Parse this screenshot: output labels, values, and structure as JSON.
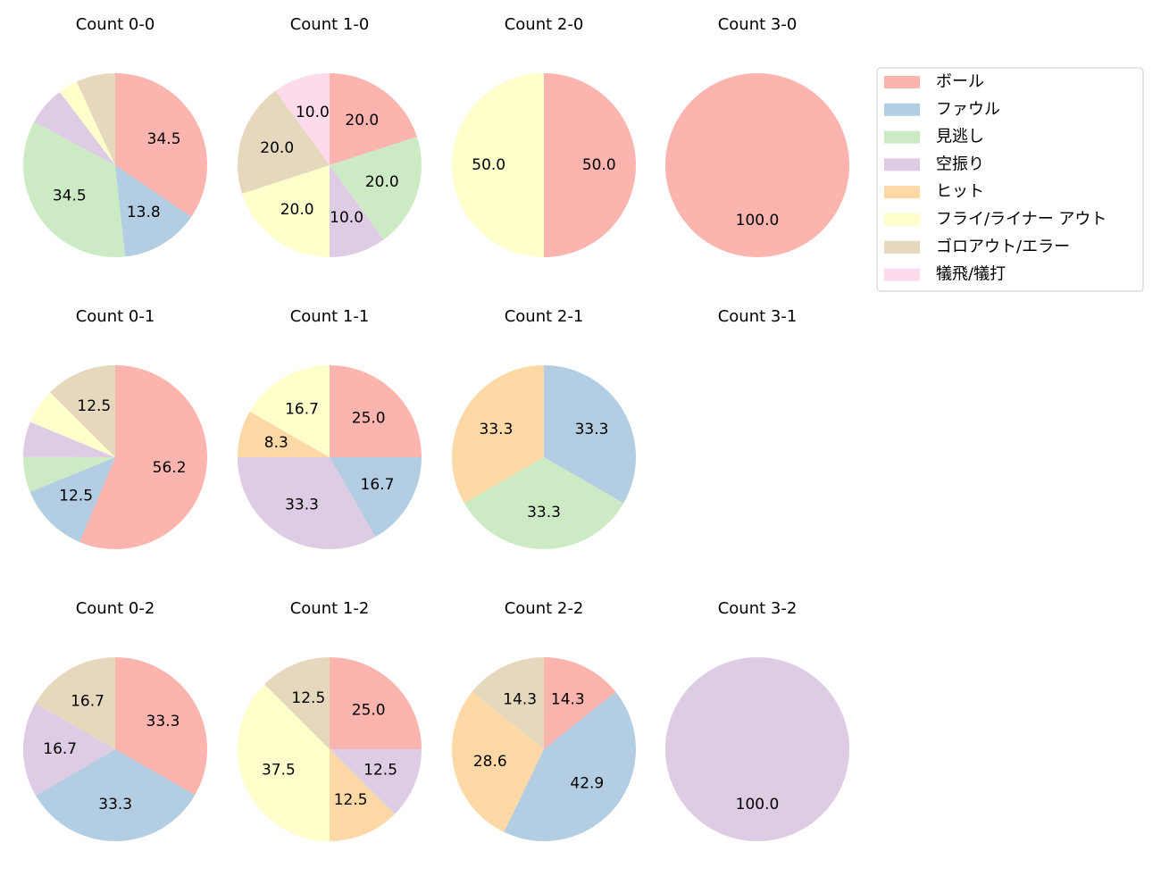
{
  "chart_data": [
    {
      "type": "pie",
      "title": "Count 0-0",
      "categories": [
        "ボール",
        "ファウル",
        "見逃し",
        "空振り",
        "フライ/ライナー アウト",
        "ゴロアウト/エラー"
      ],
      "values": [
        34.5,
        13.8,
        34.5,
        6.9,
        3.4,
        6.9
      ],
      "value_labels": [
        "34.5",
        "13.8",
        "34.5",
        null,
        null,
        null
      ],
      "colors": [
        "#fbb4ae",
        "#b3cde3",
        "#ccebc5",
        "#decbe4",
        "#ffffcc",
        "#e5d8bd"
      ]
    },
    {
      "type": "pie",
      "title": "Count 1-0",
      "categories": [
        "ボール",
        "見逃し",
        "空振り",
        "フライ/ライナー アウト",
        "ゴロアウト/エラー",
        "犠飛/犠打"
      ],
      "values": [
        20,
        20,
        10,
        20,
        20,
        10
      ],
      "value_labels": [
        "20.0",
        "20.0",
        "10.0",
        "20.0",
        "20.0",
        "10.0"
      ],
      "colors": [
        "#fbb4ae",
        "#ccebc5",
        "#decbe4",
        "#ffffcc",
        "#e5d8bd",
        "#fddaec"
      ]
    },
    {
      "type": "pie",
      "title": "Count 2-0",
      "categories": [
        "ボール",
        "フライ/ライナー アウト"
      ],
      "values": [
        50,
        50
      ],
      "value_labels": [
        "50.0",
        "50.0"
      ],
      "colors": [
        "#fbb4ae",
        "#ffffcc"
      ]
    },
    {
      "type": "pie",
      "title": "Count 3-0",
      "categories": [
        "ボール"
      ],
      "values": [
        100
      ],
      "value_labels": [
        "100.0"
      ],
      "colors": [
        "#fbb4ae"
      ]
    },
    {
      "type": "pie",
      "title": "Count 0-1",
      "categories": [
        "ボール",
        "ファウル",
        "見逃し",
        "空振り",
        "フライ/ライナー アウト",
        "ゴロアウト/エラー"
      ],
      "values": [
        56.2,
        12.5,
        6.2,
        6.2,
        6.2,
        12.5
      ],
      "value_labels": [
        "56.2",
        "12.5",
        null,
        null,
        null,
        "12.5"
      ],
      "colors": [
        "#fbb4ae",
        "#b3cde3",
        "#ccebc5",
        "#decbe4",
        "#ffffcc",
        "#e5d8bd"
      ]
    },
    {
      "type": "pie",
      "title": "Count 1-1",
      "categories": [
        "ボール",
        "ファウル",
        "空振り",
        "ヒット",
        "フライ/ライナー アウト"
      ],
      "values": [
        25,
        16.7,
        33.3,
        8.3,
        16.7
      ],
      "value_labels": [
        "25.0",
        "16.7",
        "33.3",
        "8.3",
        "16.7"
      ],
      "colors": [
        "#fbb4ae",
        "#b3cde3",
        "#decbe4",
        "#fed9a6",
        "#ffffcc"
      ]
    },
    {
      "type": "pie",
      "title": "Count 2-1",
      "categories": [
        "ファウル",
        "見逃し",
        "ヒット"
      ],
      "values": [
        33.3,
        33.3,
        33.3
      ],
      "value_labels": [
        "33.3",
        "33.3",
        "33.3"
      ],
      "colors": [
        "#b3cde3",
        "#ccebc5",
        "#fed9a6"
      ]
    },
    {
      "type": "pie",
      "title": "Count 3-1",
      "categories": [],
      "values": [],
      "value_labels": [],
      "colors": []
    },
    {
      "type": "pie",
      "title": "Count 0-2",
      "categories": [
        "ボール",
        "ファウル",
        "空振り",
        "ゴロアウト/エラー"
      ],
      "values": [
        33.3,
        33.3,
        16.7,
        16.7
      ],
      "value_labels": [
        "33.3",
        "33.3",
        "16.7",
        "16.7"
      ],
      "colors": [
        "#fbb4ae",
        "#b3cde3",
        "#decbe4",
        "#e5d8bd"
      ]
    },
    {
      "type": "pie",
      "title": "Count 1-2",
      "categories": [
        "ボール",
        "空振り",
        "ヒット",
        "フライ/ライナー アウト",
        "ゴロアウト/エラー"
      ],
      "values": [
        25,
        12.5,
        12.5,
        37.5,
        12.5
      ],
      "value_labels": [
        "25.0",
        "12.5",
        "12.5",
        "37.5",
        "12.5"
      ],
      "colors": [
        "#fbb4ae",
        "#decbe4",
        "#fed9a6",
        "#ffffcc",
        "#e5d8bd"
      ]
    },
    {
      "type": "pie",
      "title": "Count 2-2",
      "categories": [
        "ボール",
        "ファウル",
        "ヒット",
        "ゴロアウト/エラー"
      ],
      "values": [
        14.3,
        42.9,
        28.6,
        14.3
      ],
      "value_labels": [
        "14.3",
        "42.9",
        "28.6",
        "14.3"
      ],
      "colors": [
        "#fbb4ae",
        "#b3cde3",
        "#fed9a6",
        "#e5d8bd"
      ]
    },
    {
      "type": "pie",
      "title": "Count 3-2",
      "categories": [
        "空振り"
      ],
      "values": [
        100
      ],
      "value_labels": [
        "100.0"
      ],
      "colors": [
        "#decbe4"
      ]
    }
  ],
  "legend": {
    "labels": [
      "ボール",
      "ファウル",
      "見逃し",
      "空振り",
      "ヒット",
      "フライ/ライナー アウト",
      "ゴロアウト/エラー",
      "犠飛/犠打"
    ],
    "colors": [
      "#fbb4ae",
      "#b3cde3",
      "#ccebc5",
      "#decbe4",
      "#fed9a6",
      "#ffffcc",
      "#e5d8bd",
      "#fddaec"
    ],
    "position": "upper right"
  }
}
